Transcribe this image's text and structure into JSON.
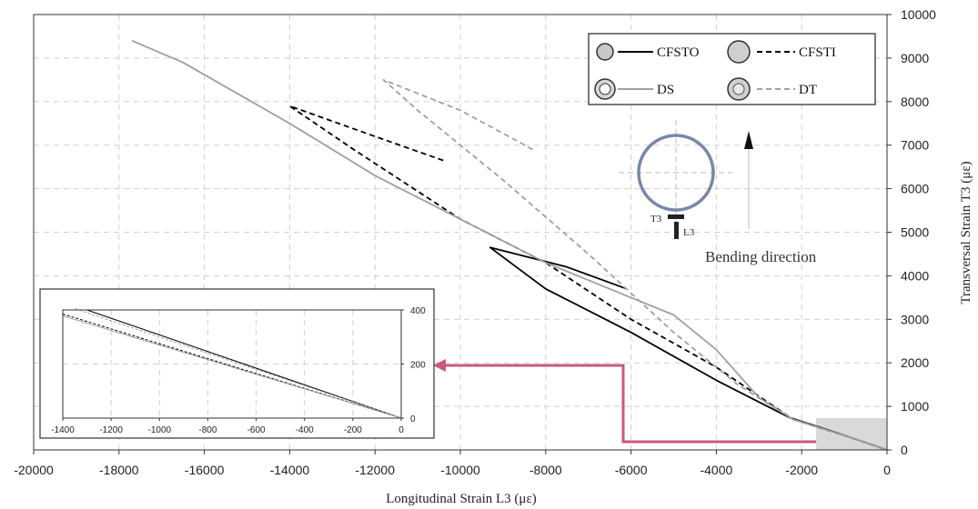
{
  "chart_data": {
    "type": "line",
    "xlabel": "Longitudinal  Strain L3 (με)",
    "ylabel": "Transversal Strain T3 (με)",
    "xlim": [
      -20000,
      0
    ],
    "ylim": [
      0,
      10000
    ],
    "x_ticks": [
      -20000,
      -18000,
      -16000,
      -14000,
      -12000,
      -10000,
      -8000,
      -6000,
      -4000,
      -2000,
      0
    ],
    "y_ticks": [
      0,
      1000,
      2000,
      3000,
      4000,
      5000,
      6000,
      7000,
      8000,
      9000,
      10000
    ],
    "grid": true,
    "legend": "top-right",
    "series": [
      {
        "name": "CFSTO",
        "color": "#000000",
        "style": "solid",
        "x": [
          -6100,
          -7500,
          -9300,
          -8000,
          -6000,
          -4000,
          -2300,
          -1200,
          0
        ],
        "y": [
          3700,
          4200,
          4650,
          3700,
          2700,
          1600,
          750,
          400,
          0
        ]
      },
      {
        "name": "CFSTI",
        "color": "#000000",
        "style": "dashed",
        "x": [
          -10400,
          -12000,
          -14000,
          -12500,
          -10000,
          -8000,
          -6000,
          -4000,
          -2200,
          -1000,
          0
        ],
        "y": [
          6650,
          7200,
          7900,
          6900,
          5300,
          4300,
          3000,
          1900,
          700,
          330,
          0
        ]
      },
      {
        "name": "DS",
        "color": "#a0a0a0",
        "style": "solid",
        "x": [
          -17700,
          -16500,
          -14000,
          -12000,
          -10000,
          -8000,
          -6000,
          -5000,
          -4000,
          -3000,
          -2200,
          -1000,
          0
        ],
        "y": [
          9400,
          8900,
          7500,
          6300,
          5300,
          4300,
          3500,
          3100,
          2300,
          1200,
          700,
          330,
          0
        ]
      },
      {
        "name": "DT",
        "color": "#a0a0a0",
        "style": "dashed",
        "x": [
          -8300,
          -10000,
          -11800,
          -11000,
          -9000,
          -7000,
          -5000,
          -3500,
          -2200,
          -1000,
          0
        ],
        "y": [
          6900,
          7800,
          8500,
          7800,
          6200,
          4500,
          2700,
          1500,
          700,
          330,
          0
        ]
      }
    ],
    "inset": {
      "xlim": [
        -1400,
        0
      ],
      "ylim": [
        0,
        400
      ],
      "x_ticks": [
        -1400,
        -1200,
        -1000,
        -800,
        -600,
        -400,
        -200,
        0
      ],
      "y_ticks": [
        0,
        200,
        400
      ],
      "series": [
        {
          "name": "CFSTO",
          "color": "#000000",
          "style": "solid",
          "x": [
            -1300,
            0
          ],
          "y": [
            400,
            0
          ]
        },
        {
          "name": "CFSTI",
          "color": "#000000",
          "style": "dashed",
          "x": [
            -1400,
            0
          ],
          "y": [
            385,
            0
          ]
        },
        {
          "name": "DS",
          "color": "#a0a0a0",
          "style": "solid",
          "x": [
            -1400,
            0
          ],
          "y": [
            378,
            0
          ]
        },
        {
          "name": "DT",
          "color": "#a0a0a0",
          "style": "dashed",
          "x": [
            -1350,
            0
          ],
          "y": [
            405,
            0
          ]
        }
      ]
    },
    "annotations": {
      "bending_direction": "Bending direction",
      "gauge_t3": "T3",
      "gauge_l3": "L3"
    },
    "colors": {
      "highlight_arrow": "#c9587a",
      "ring": "#7788aa",
      "highlight_box": "#d9d9d9"
    }
  }
}
